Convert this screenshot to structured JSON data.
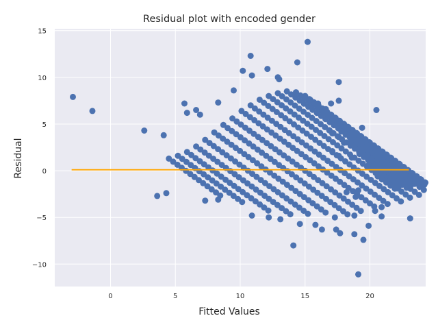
{
  "chart_data": {
    "type": "scatter",
    "title": "Residual plot with encoded gender",
    "xlabel": "Fitted Values",
    "ylabel": "Residual",
    "xlim": [
      -4.3,
      24.3
    ],
    "ylim": [
      -12.4,
      15.2
    ],
    "xticks": [
      0,
      5,
      10,
      15,
      20
    ],
    "yticks": [
      -10,
      -5,
      0,
      5,
      10,
      15
    ],
    "grid": true,
    "colors": {
      "background": "#eaeaf2",
      "grid": "#ffffff",
      "points": "#4c72b0",
      "reference_line": "#ffa500"
    },
    "reference_line": {
      "x": [
        -3.0,
        23.0
      ],
      "y": [
        0.1,
        0.1
      ]
    },
    "band": {
      "slope": -1,
      "lines": 24,
      "x_start": [
        4.5,
        5.2,
        5.9,
        6.6,
        7.3,
        8.0,
        8.7,
        9.4,
        10.1,
        10.8,
        11.5,
        12.2,
        12.9,
        13.6,
        14.3,
        15.0,
        15.7,
        16.4,
        17.1,
        17.8,
        18.5,
        19.2,
        19.9,
        20.6
      ],
      "y_start": [
        1.3,
        1.6,
        2.0,
        2.6,
        3.3,
        4.1,
        4.9,
        5.6,
        6.4,
        7.0,
        7.6,
        8.0,
        8.3,
        8.5,
        8.4,
        8.0,
        7.3,
        6.4,
        5.3,
        4.2,
        3.0,
        1.8,
        0.6,
        -0.6
      ],
      "length": [
        4.2,
        5.2,
        6.3,
        7.3,
        8.2,
        8.9,
        9.6,
        10.1,
        10.5,
        10.8,
        11.0,
        11.0,
        10.9,
        10.6,
        10.1,
        9.5,
        8.7,
        7.8,
        6.9,
        5.9,
        4.8,
        3.7,
        2.6,
        1.5
      ],
      "step": 0.33
    },
    "points": [
      {
        "x": -2.9,
        "y": 7.9
      },
      {
        "x": -1.4,
        "y": 6.4
      },
      {
        "x": 2.6,
        "y": 4.3
      },
      {
        "x": 4.1,
        "y": 3.8
      },
      {
        "x": 3.6,
        "y": -2.7
      },
      {
        "x": 4.3,
        "y": -2.4
      },
      {
        "x": 5.7,
        "y": 7.2
      },
      {
        "x": 5.9,
        "y": 6.2
      },
      {
        "x": 6.6,
        "y": 6.5
      },
      {
        "x": 6.9,
        "y": 6.0
      },
      {
        "x": 8.3,
        "y": 7.3
      },
      {
        "x": 9.5,
        "y": 8.6
      },
      {
        "x": 10.2,
        "y": 10.7
      },
      {
        "x": 10.8,
        "y": 12.3
      },
      {
        "x": 10.9,
        "y": 10.2
      },
      {
        "x": 12.1,
        "y": 10.9
      },
      {
        "x": 12.9,
        "y": 10.0
      },
      {
        "x": 13.0,
        "y": 9.8
      },
      {
        "x": 14.4,
        "y": 11.6
      },
      {
        "x": 15.2,
        "y": 13.8
      },
      {
        "x": 15.0,
        "y": 8.0
      },
      {
        "x": 15.4,
        "y": 7.6
      },
      {
        "x": 16.0,
        "y": 7.2
      },
      {
        "x": 16.6,
        "y": 6.6
      },
      {
        "x": 17.0,
        "y": 7.2
      },
      {
        "x": 17.6,
        "y": 9.5
      },
      {
        "x": 17.6,
        "y": 7.5
      },
      {
        "x": 16.9,
        "y": 4.3
      },
      {
        "x": 17.1,
        "y": 4.0
      },
      {
        "x": 17.6,
        "y": 3.6
      },
      {
        "x": 18.0,
        "y": 3.0
      },
      {
        "x": 17.1,
        "y": 2.1
      },
      {
        "x": 17.6,
        "y": 1.6
      },
      {
        "x": 18.6,
        "y": 1.4
      },
      {
        "x": 19.4,
        "y": 4.6
      },
      {
        "x": 20.5,
        "y": 6.5
      },
      {
        "x": 20.7,
        "y": 1.4
      },
      {
        "x": 18.9,
        "y": -2.8
      },
      {
        "x": 19.1,
        "y": -2.1
      },
      {
        "x": 18.8,
        "y": -4.8
      },
      {
        "x": 20.4,
        "y": -4.3
      },
      {
        "x": 20.9,
        "y": -3.9
      },
      {
        "x": 20.9,
        "y": -4.9
      },
      {
        "x": 23.1,
        "y": -5.1
      },
      {
        "x": 19.9,
        "y": -5.9
      },
      {
        "x": 18.8,
        "y": -6.8
      },
      {
        "x": 19.5,
        "y": -7.4
      },
      {
        "x": 19.1,
        "y": -11.1
      },
      {
        "x": 14.1,
        "y": -8.0
      },
      {
        "x": 14.6,
        "y": -5.7
      },
      {
        "x": 15.8,
        "y": -5.8
      },
      {
        "x": 16.3,
        "y": -6.3
      },
      {
        "x": 17.4,
        "y": -6.3
      },
      {
        "x": 17.7,
        "y": -6.7
      },
      {
        "x": 17.3,
        "y": -5.0
      },
      {
        "x": 18.2,
        "y": -2.3
      },
      {
        "x": 7.3,
        "y": -3.2
      },
      {
        "x": 8.3,
        "y": -3.1
      },
      {
        "x": 10.9,
        "y": -4.8
      },
      {
        "x": 12.2,
        "y": -5.0
      },
      {
        "x": 13.1,
        "y": -5.2
      }
    ]
  }
}
